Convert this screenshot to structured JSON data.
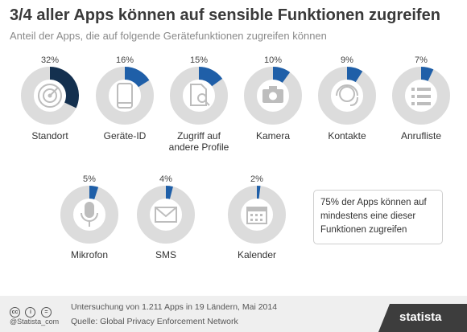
{
  "title": "3/4 aller Apps können auf sensible Funktionen zugreifen",
  "subtitle": "Anteil der Apps, die auf folgende Gerätefunktionen zugreifen können",
  "colors": {
    "accent": "#1f5fa8",
    "accent_dark": "#14304f",
    "ring": "#dcdcdc",
    "icon": "#bdbdbd"
  },
  "chart_data": {
    "type": "pie",
    "unit": "%",
    "items": [
      {
        "label": "Standort",
        "value": 32,
        "value_label": "32%",
        "icon": "radar-icon"
      },
      {
        "label": "Geräte-ID",
        "value": 16,
        "value_label": "16%",
        "icon": "smartphone-icon"
      },
      {
        "label": "Zugriff auf\nandere Profile",
        "value": 15,
        "value_label": "15%",
        "icon": "profile-search-icon"
      },
      {
        "label": "Kamera",
        "value": 10,
        "value_label": "10%",
        "icon": "camera-icon"
      },
      {
        "label": "Kontakte",
        "value": 9,
        "value_label": "9%",
        "icon": "headset-icon"
      },
      {
        "label": "Anrufliste",
        "value": 7,
        "value_label": "7%",
        "icon": "list-icon"
      },
      {
        "label": "Mikrofon",
        "value": 5,
        "value_label": "5%",
        "icon": "microphone-icon"
      },
      {
        "label": "SMS",
        "value": 4,
        "value_label": "4%",
        "icon": "envelope-icon"
      },
      {
        "label": "Kalender",
        "value": 2,
        "value_label": "2%",
        "icon": "calendar-icon"
      }
    ]
  },
  "note": "75% der Apps können auf mindestens eine dieser Funktionen zugreifen",
  "footer": {
    "license_icons": [
      "cc-icon",
      "by-icon",
      "nd-icon"
    ],
    "license_glyphs": [
      "cc",
      "i",
      "="
    ],
    "credit": "@Statista_com",
    "source_line1": "Untersuchung von 1.211 Apps in 19 Ländern, Mai 2014",
    "source_line2": "Quelle: Global Privacy Enforcement Network",
    "brand": "statista"
  }
}
